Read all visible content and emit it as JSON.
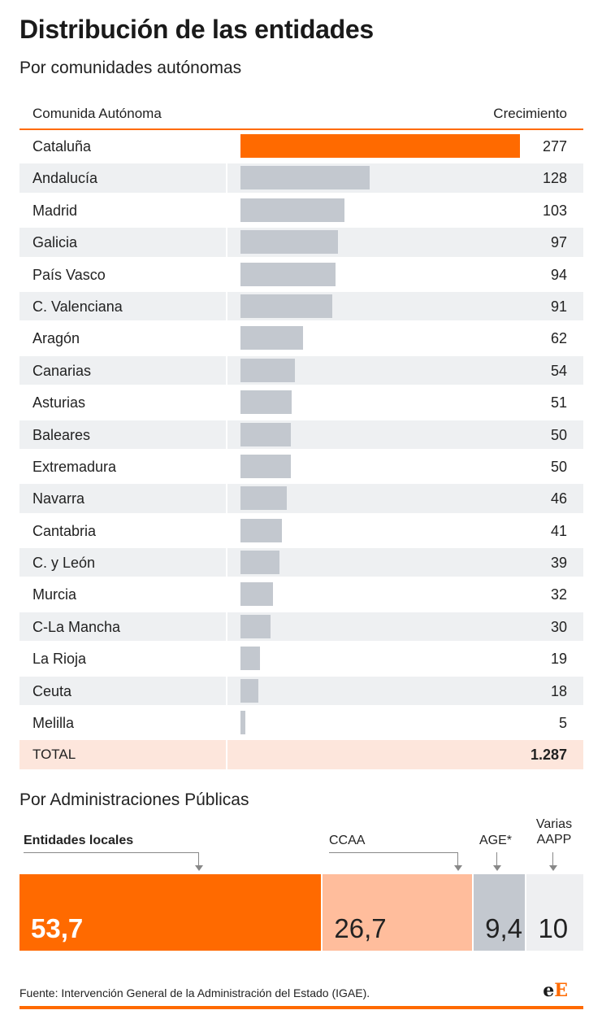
{
  "title": "Distribución de las entidades",
  "subtitle": "Por comunidades autónomas",
  "table": {
    "col_region": "Comunida Autónoma",
    "col_value": "Crecimiento"
  },
  "chart_data": [
    {
      "type": "bar",
      "orientation": "horizontal",
      "categories": [
        "Cataluña",
        "Andalucía",
        "Madrid",
        "Galicia",
        "País Vasco",
        "C. Valenciana",
        "Aragón",
        "Canarias",
        "Asturias",
        "Baleares",
        "Extremadura",
        "Navarra",
        "Cantabria",
        "C. y León",
        "Murcia",
        "C-La Mancha",
        "La Rioja",
        "Ceuta",
        "Melilla"
      ],
      "values": [
        277,
        128,
        103,
        97,
        94,
        91,
        62,
        54,
        51,
        50,
        50,
        46,
        41,
        39,
        32,
        30,
        19,
        18,
        5
      ],
      "value_labels": [
        "277",
        "128",
        "103",
        "97",
        "94",
        "91",
        "62",
        "54",
        "51",
        "50",
        "50",
        "46",
        "41",
        "39",
        "32",
        "30",
        "19",
        "18",
        "5"
      ],
      "highlight_color": "#ff6a00",
      "bar_color": "#c3c8cf",
      "total_label": "TOTAL",
      "total_value": "1.287"
    },
    {
      "type": "bar",
      "orientation": "stacked-horizontal",
      "title": "Por Administraciones Públicas",
      "categories": [
        "Entidades locales",
        "CCAA",
        "AGE*",
        "Varias AAPP"
      ],
      "values": [
        53.7,
        26.7,
        9.4,
        10
      ],
      "value_labels": [
        "53,7",
        "26,7",
        "9,4",
        "10"
      ],
      "colors": [
        "#ff6a00",
        "#ffbd9c",
        "#c3c8cf",
        "#eeeff1"
      ],
      "text_colors": [
        "#ffffff",
        "#222222",
        "#222222",
        "#222222"
      ]
    }
  ],
  "source": "Fuente: Intervención General de la Administración del Estado (IGAE).",
  "logo": {
    "part1": "e",
    "part2": "E"
  }
}
